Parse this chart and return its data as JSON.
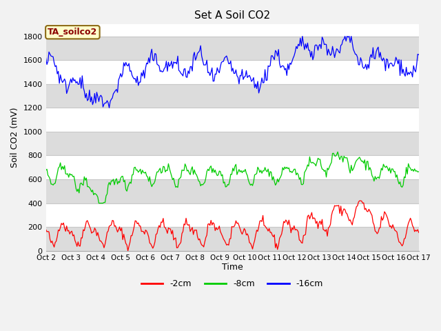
{
  "title": "Set A Soil CO2",
  "ylabel": "Soil CO2 (mV)",
  "xlabel": "Time",
  "xlim": [
    0,
    360
  ],
  "ylim": [
    0,
    1900
  ],
  "yticks": [
    0,
    200,
    400,
    600,
    800,
    1000,
    1200,
    1400,
    1600,
    1800
  ],
  "xtick_labels": [
    "Oct 2",
    "Oct 3",
    "Oct 4",
    "Oct 5",
    "Oct 6",
    "Oct 7",
    "Oct 8",
    "Oct 9",
    "Oct 10",
    "Oct 11",
    "Oct 12",
    "Oct 13",
    "Oct 14",
    "Oct 15",
    "Oct 16",
    "Oct 17"
  ],
  "annotation_text": "TA_soilco2",
  "annotation_color": "#8B0000",
  "annotation_bg": "#FFFFCC",
  "annotation_border": "#8B6914",
  "line_colors": [
    "#FF0000",
    "#00CC00",
    "#0000FF"
  ],
  "line_labels": [
    "-2cm",
    "-8cm",
    "-16cm"
  ],
  "plot_bg": "#FFFFFF",
  "band_color": "#DCDCDC",
  "fig_bg": "#F2F2F2",
  "grid_color": "#C8C8C8",
  "seed": 42
}
